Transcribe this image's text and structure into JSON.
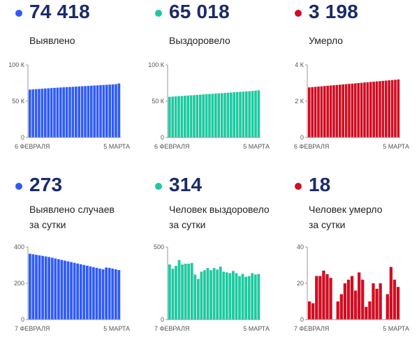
{
  "panels": [
    {
      "value": "74 418",
      "label": [
        "Выявлено"
      ],
      "color": "#2f5bf7",
      "yticks": [
        "100 К",
        "50 К",
        "0"
      ],
      "xlabels": [
        "6 ФЕВРАЛЯ",
        "5 МАРТА"
      ]
    },
    {
      "value": "65 018",
      "label": [
        "Выздоровело"
      ],
      "color": "#1ec9a0",
      "yticks": [
        "100 К",
        "50 К",
        "0"
      ],
      "xlabels": [
        "6 ФЕВРАЛЯ",
        "5 МАРТА"
      ]
    },
    {
      "value": "3 198",
      "label": [
        "Умерло"
      ],
      "color": "#d10d22",
      "yticks": [
        "4 К",
        "2 К",
        "0"
      ],
      "xlabels": [
        "6 ФЕВРАЛЯ",
        "5 МАРТА"
      ]
    },
    {
      "value": "273",
      "label": [
        "Выявлено случаев",
        "за сутки"
      ],
      "color": "#2f5bf7",
      "yticks": [
        "400",
        "200",
        "0"
      ],
      "xlabels": [
        "7 ФЕВРАЛЯ",
        "5 МАРТА"
      ]
    },
    {
      "value": "314",
      "label": [
        "Человек выздоровело",
        "за сутки"
      ],
      "color": "#1ec9a0",
      "yticks": [
        "500",
        "0"
      ],
      "xlabels": [
        "7 ФЕВРАЛЯ",
        "5 МАРТА"
      ]
    },
    {
      "value": "18",
      "label": [
        "Человек умерло",
        "за сутки"
      ],
      "color": "#d10d22",
      "yticks": [
        "40",
        "20",
        "0"
      ],
      "xlabels": [
        "7 ФЕВРАЛЯ",
        "5 МАРТА"
      ]
    }
  ],
  "chart_data": [
    {
      "type": "bar",
      "ylim": [
        0,
        100000
      ],
      "values": [
        66000,
        66300,
        66600,
        66900,
        67200,
        67500,
        67800,
        68100,
        68350,
        68600,
        68850,
        69100,
        69350,
        69600,
        69850,
        70100,
        70350,
        70600,
        70850,
        71100,
        71350,
        71600,
        71850,
        72100,
        72350,
        72600,
        72850,
        73100,
        73400,
        74418
      ]
    },
    {
      "type": "bar",
      "ylim": [
        0,
        100000
      ],
      "values": [
        56000,
        56300,
        56600,
        56900,
        57200,
        57500,
        57800,
        58100,
        58400,
        58700,
        59000,
        59300,
        59600,
        59900,
        60200,
        60500,
        60800,
        61100,
        61400,
        61700,
        62000,
        62300,
        62600,
        62900,
        63200,
        63500,
        63800,
        64100,
        64500,
        65018
      ]
    },
    {
      "type": "bar",
      "ylim": [
        0,
        4000
      ],
      "values": [
        2760,
        2775,
        2790,
        2805,
        2820,
        2835,
        2850,
        2865,
        2880,
        2895,
        2910,
        2925,
        2940,
        2955,
        2970,
        2985,
        3000,
        3015,
        3030,
        3045,
        3060,
        3075,
        3090,
        3105,
        3120,
        3135,
        3150,
        3165,
        3180,
        3198
      ]
    },
    {
      "type": "bar",
      "ylim": [
        0,
        400
      ],
      "values": [
        363,
        360,
        357,
        354,
        351,
        348,
        345,
        341,
        337,
        333,
        329,
        325,
        321,
        317,
        313,
        309,
        305,
        301,
        297,
        293,
        289,
        285,
        281,
        277,
        287,
        285,
        281,
        277,
        273
      ]
    },
    {
      "type": "bar",
      "ylim": [
        0,
        500
      ],
      "values": [
        380,
        350,
        370,
        410,
        380,
        385,
        385,
        390,
        310,
        280,
        330,
        340,
        355,
        340,
        355,
        345,
        365,
        330,
        325,
        320,
        335,
        320,
        300,
        315,
        295,
        300,
        320,
        310,
        314
      ]
    },
    {
      "type": "bar",
      "ylim": [
        0,
        40
      ],
      "values": [
        10,
        9,
        24,
        24,
        27,
        25,
        23,
        0,
        10,
        14,
        20,
        22,
        24,
        16,
        26,
        22,
        7,
        10,
        20,
        17,
        20,
        0,
        14,
        29,
        22,
        18
      ]
    }
  ]
}
